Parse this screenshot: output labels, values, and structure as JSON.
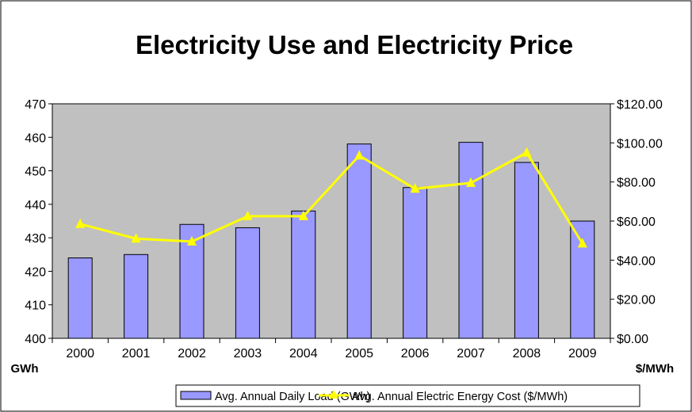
{
  "chart_data": {
    "type": "bar",
    "title": "Electricity Use and Electricity Price",
    "categories": [
      "2000",
      "2001",
      "2002",
      "2003",
      "2004",
      "2005",
      "2006",
      "2007",
      "2008",
      "2009"
    ],
    "y_left": {
      "label": "GWh",
      "min": 400,
      "max": 470,
      "ticks": [
        400,
        410,
        420,
        430,
        440,
        450,
        460,
        470
      ],
      "tick_labels": [
        "400",
        "410",
        "420",
        "430",
        "440",
        "450",
        "460",
        "470"
      ]
    },
    "y_right": {
      "label": "$/MWh",
      "min": 0,
      "max": 120,
      "ticks": [
        0,
        20,
        40,
        60,
        80,
        100,
        120
      ],
      "tick_labels": [
        "$0.00",
        "$20.00",
        "$40.00",
        "$60.00",
        "$80.00",
        "$100.00",
        "$120.00"
      ]
    },
    "grid": false,
    "legend_position": "bottom",
    "series": [
      {
        "name": "Avg. Annual Daily Load (GWh)",
        "type": "bar",
        "axis": "left",
        "color": "#9999ff",
        "values": [
          424,
          425,
          434,
          433,
          438,
          458,
          445,
          458.5,
          452.5,
          435
        ]
      },
      {
        "name": "Avg. Annual Electric Energy Cost ($/MWh)",
        "type": "line",
        "axis": "right",
        "color": "#ffff00",
        "values": [
          58.5,
          51,
          49.5,
          62.5,
          62.5,
          93.5,
          76.5,
          79.5,
          95,
          48.5
        ]
      }
    ]
  },
  "colors": {
    "plot_background": "#c0c0c0",
    "bar": "#9999ff",
    "line": "#ffff00"
  }
}
